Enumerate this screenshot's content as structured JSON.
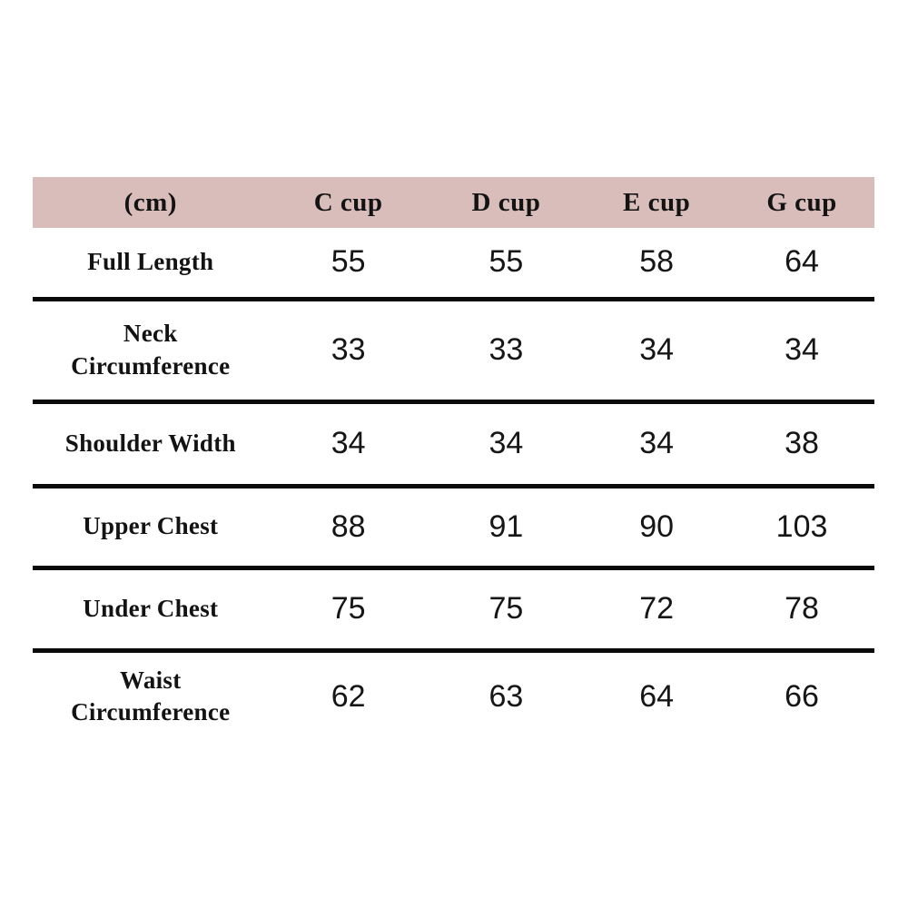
{
  "chart_data": {
    "type": "table",
    "title": "",
    "unit_label": "(cm)",
    "columns": [
      "(cm)",
      "C cup",
      "D cup",
      "E cup",
      "G cup"
    ],
    "rows": [
      {
        "label": "Full Length",
        "values": [
          "55",
          "55",
          "58",
          "64"
        ]
      },
      {
        "label": "Neck Circumference",
        "values": [
          "33",
          "33",
          "34",
          "34"
        ]
      },
      {
        "label": "Shoulder Width",
        "values": [
          "34",
          "34",
          "34",
          "38"
        ]
      },
      {
        "label": "Upper Chest",
        "values": [
          "88",
          "91",
          "90",
          "103"
        ]
      },
      {
        "label": "Under Chest",
        "values": [
          "75",
          "75",
          "72",
          "78"
        ]
      },
      {
        "label": "Waist Circumference",
        "values": [
          "62",
          "63",
          "64",
          "66"
        ]
      }
    ],
    "layout_hints": {
      "header_background": "#d9bdba",
      "row_separator_color": "#0a0a0a",
      "text_color": "#131313",
      "background": "#ffffff",
      "grid": "horizontal-rules-only"
    }
  },
  "table": {
    "headers": [
      "(cm)",
      "C cup",
      "D cup",
      "E cup",
      "G cup"
    ],
    "rows": [
      {
        "label": "Full Length",
        "values": [
          "55",
          "55",
          "58",
          "64"
        ]
      },
      {
        "label": "Neck Circumference",
        "values": [
          "33",
          "33",
          "34",
          "34"
        ]
      },
      {
        "label": "Shoulder Width",
        "values": [
          "34",
          "34",
          "34",
          "38"
        ]
      },
      {
        "label": "Upper Chest",
        "values": [
          "88",
          "91",
          "90",
          "103"
        ]
      },
      {
        "label": "Under Chest",
        "values": [
          "75",
          "75",
          "72",
          "78"
        ]
      },
      {
        "label": "Waist Circumference",
        "values": [
          "62",
          "63",
          "64",
          "66"
        ]
      }
    ],
    "colors": {
      "header_background": "#d9bdba",
      "separator": "#0a0a0a",
      "text": "#131313"
    }
  }
}
